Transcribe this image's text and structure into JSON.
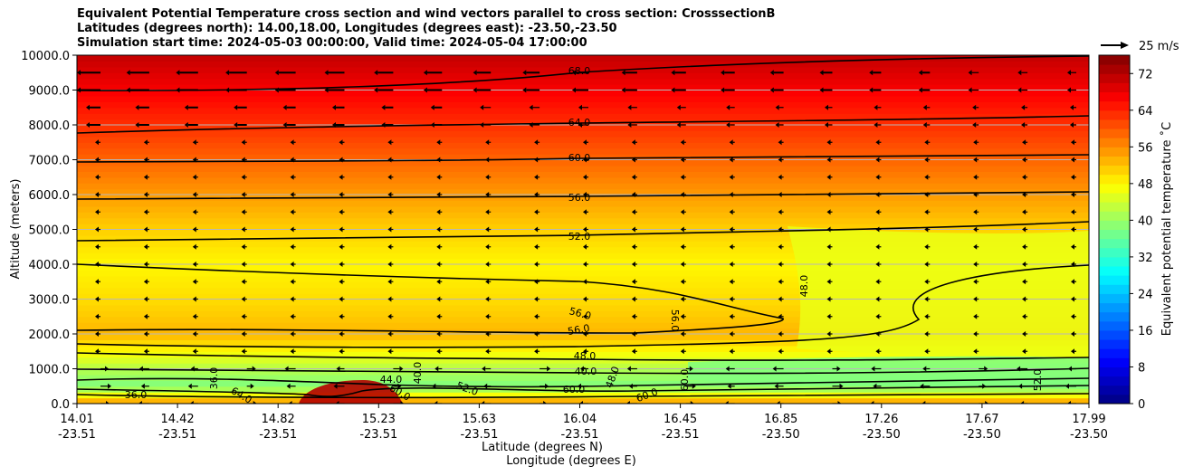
{
  "chart_data": {
    "type": "heatmap",
    "title_lines": [
      "Equivalent Potential Temperature cross section and wind vectors parallel to cross section: CrosssectionB",
      "Latitudes (degrees north): 14.00,18.00, Longitudes (degrees east): -23.50,-23.50",
      "Simulation start time: 2024-05-03 00:00:00, Valid time: 2024-05-04 17:00:00"
    ],
    "ylabel": "Altitude (meters)",
    "xlabel_lat": "Latitude (degrees N)",
    "xlabel_lon": "Longitude (degrees E)",
    "ylim": [
      0,
      10000
    ],
    "yticks": [
      "0.0",
      "1000.0",
      "2000.0",
      "3000.0",
      "4000.0",
      "5000.0",
      "6000.0",
      "7000.0",
      "8000.0",
      "9000.0",
      "10000.0"
    ],
    "xticks_lat": [
      "14.01",
      "14.42",
      "14.82",
      "15.23",
      "15.63",
      "16.04",
      "16.45",
      "16.85",
      "17.26",
      "17.67",
      "17.99"
    ],
    "xticks_lon": [
      "-23.51",
      "-23.51",
      "-23.51",
      "-23.51",
      "-23.51",
      "-23.51",
      "-23.51",
      "-23.50",
      "-23.50",
      "-23.50",
      "-23.50"
    ],
    "colorbar": {
      "label": "Equivalent potential temperature ˚C",
      "ticks": [
        "0",
        "8",
        "16",
        "24",
        "32",
        "40",
        "48",
        "56",
        "64",
        "72"
      ],
      "range": [
        0,
        76
      ],
      "colormap": "jet"
    },
    "quiver_key": "25 m/s",
    "contour_labels": [
      "68.0",
      "64.0",
      "60.0",
      "56.0",
      "52.0",
      "48.0",
      "48.0",
      "56.0",
      "56.0",
      "56.0",
      "40.0",
      "44.0",
      "60.0",
      "52.0",
      "64.0",
      "40.0",
      "60.0",
      "60.0",
      "36.0",
      "36.0",
      "48.0",
      "60.0",
      "52.0"
    ],
    "contour_levels_main": [
      68,
      64,
      60,
      56,
      52,
      48,
      40
    ],
    "approx_field_profile": [
      {
        "altitude": 0,
        "theta_e": 56
      },
      {
        "altitude": 500,
        "theta_e": 38
      },
      {
        "altitude": 1000,
        "theta_e": 42
      },
      {
        "altitude": 2000,
        "theta_e": 53
      },
      {
        "altitude": 3000,
        "theta_e": 50
      },
      {
        "altitude": 4000,
        "theta_e": 48
      },
      {
        "altitude": 5000,
        "theta_e": 51
      },
      {
        "altitude": 6000,
        "theta_e": 55
      },
      {
        "altitude": 7000,
        "theta_e": 59
      },
      {
        "altitude": 8000,
        "theta_e": 63
      },
      {
        "altitude": 9000,
        "theta_e": 67
      },
      {
        "altitude": 10000,
        "theta_e": 71
      }
    ]
  }
}
